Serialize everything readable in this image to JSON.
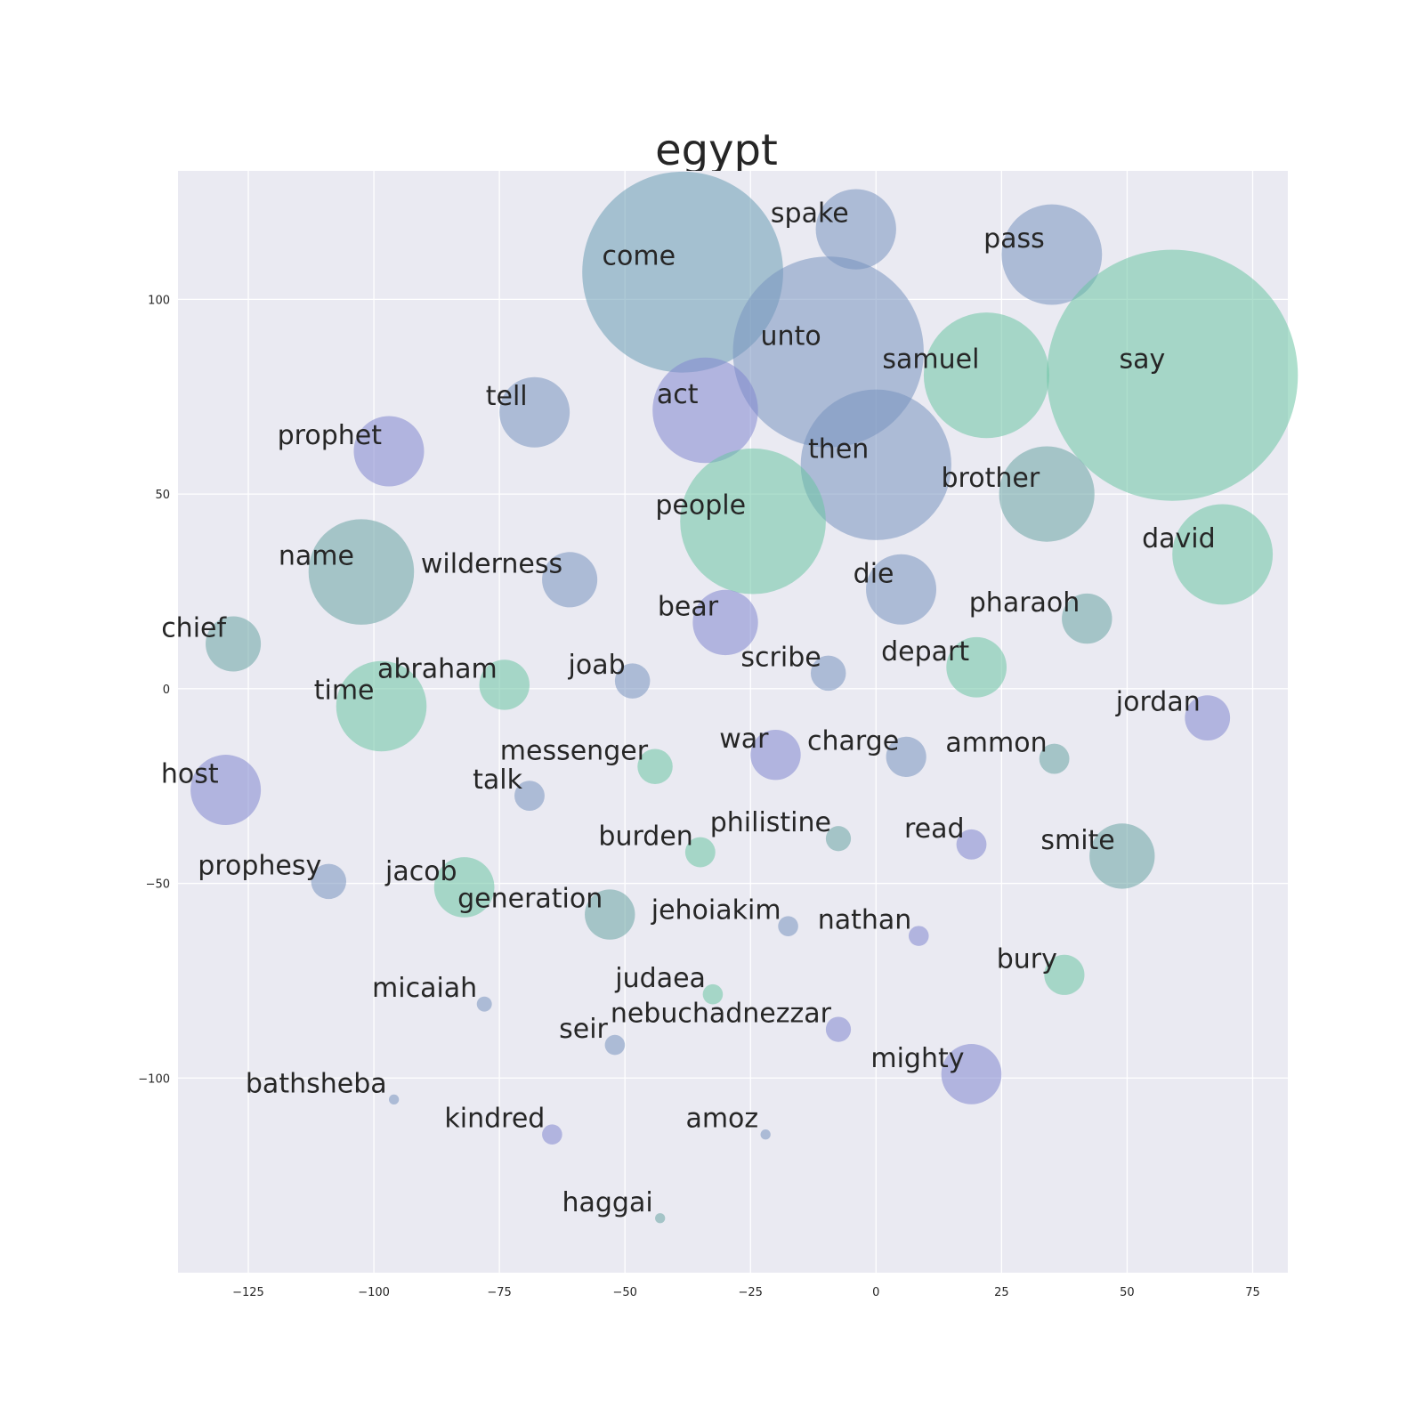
{
  "chart_data": {
    "type": "scatter",
    "title": "egypt",
    "xlabel": "",
    "ylabel": "",
    "xlim": [
      -139,
      82
    ],
    "ylim": [
      -150,
      133
    ],
    "x_ticks": [
      -125,
      -100,
      -75,
      -50,
      -25,
      0,
      25,
      50,
      75
    ],
    "y_ticks": [
      -100,
      -50,
      0,
      50,
      100
    ],
    "x_tick_labels": [
      "−125",
      "−100",
      "−75",
      "−50",
      "−25",
      "0",
      "25",
      "50",
      "75"
    ],
    "y_tick_labels": [
      "−100",
      "−50",
      "0",
      "50",
      "100"
    ],
    "grid": true,
    "legend": "none",
    "colors": {
      "background": "#eaeaf2",
      "grid": "#ffffff",
      "text": "#262626",
      "green": "#6cc4a4",
      "teal": "#6aa4a4",
      "steel": "#6a9cb4",
      "slate": "#7893bf",
      "indigo": "#8186cf"
    },
    "points": [
      {
        "label": "come",
        "x": -38.5,
        "y": 107,
        "size": 40,
        "color": "steel"
      },
      {
        "label": "spake",
        "x": -4,
        "y": 118,
        "size": 16,
        "color": "slate"
      },
      {
        "label": "pass",
        "x": 35,
        "y": 111.5,
        "size": 20,
        "color": "slate"
      },
      {
        "label": "unto",
        "x": -9.5,
        "y": 86.5,
        "size": 38,
        "color": "slate"
      },
      {
        "label": "samuel",
        "x": 22,
        "y": 80.5,
        "size": 25,
        "color": "green"
      },
      {
        "label": "say",
        "x": 59,
        "y": 80.5,
        "size": 50,
        "color": "green"
      },
      {
        "label": "tell",
        "x": -68,
        "y": 71,
        "size": 14,
        "color": "slate"
      },
      {
        "label": "act",
        "x": -34,
        "y": 71.5,
        "size": 21,
        "color": "indigo"
      },
      {
        "label": "prophet",
        "x": -97,
        "y": 61,
        "size": 14,
        "color": "indigo"
      },
      {
        "label": "then",
        "x": 0,
        "y": 57.5,
        "size": 30,
        "color": "slate"
      },
      {
        "label": "brother",
        "x": 34,
        "y": 50,
        "size": 19,
        "color": "teal"
      },
      {
        "label": "people",
        "x": -24.5,
        "y": 43,
        "size": 29,
        "color": "green"
      },
      {
        "label": "david",
        "x": 69,
        "y": 34.5,
        "size": 20,
        "color": "green"
      },
      {
        "label": "name",
        "x": -102.5,
        "y": 30,
        "size": 21,
        "color": "teal"
      },
      {
        "label": "wilderness",
        "x": -61,
        "y": 28,
        "size": 11,
        "color": "slate"
      },
      {
        "label": "die",
        "x": 5,
        "y": 25.5,
        "size": 14,
        "color": "slate"
      },
      {
        "label": "bear",
        "x": -30,
        "y": 17,
        "size": 13,
        "color": "indigo"
      },
      {
        "label": "pharaoh",
        "x": 42,
        "y": 18,
        "size": 10,
        "color": "teal"
      },
      {
        "label": "chief",
        "x": -128,
        "y": 11.5,
        "size": 11,
        "color": "teal"
      },
      {
        "label": "depart",
        "x": 20,
        "y": 5.5,
        "size": 12,
        "color": "green"
      },
      {
        "label": "scribe",
        "x": -9.5,
        "y": 4,
        "size": 7,
        "color": "slate"
      },
      {
        "label": "joab",
        "x": -48.5,
        "y": 2,
        "size": 7,
        "color": "slate"
      },
      {
        "label": "abraham",
        "x": -74,
        "y": 1,
        "size": 10,
        "color": "green"
      },
      {
        "label": "time",
        "x": -98.5,
        "y": -4.5,
        "size": 18,
        "color": "green"
      },
      {
        "label": "jordan",
        "x": 66,
        "y": -7.5,
        "size": 9,
        "color": "indigo"
      },
      {
        "label": "war",
        "x": -20,
        "y": -17,
        "size": 10,
        "color": "indigo"
      },
      {
        "label": "charge",
        "x": 6,
        "y": -17.5,
        "size": 8,
        "color": "slate"
      },
      {
        "label": "ammon",
        "x": 35.5,
        "y": -18,
        "size": 6,
        "color": "teal"
      },
      {
        "label": "messenger",
        "x": -44,
        "y": -20,
        "size": 7,
        "color": "green"
      },
      {
        "label": "host",
        "x": -129.5,
        "y": -26,
        "size": 14,
        "color": "indigo"
      },
      {
        "label": "talk",
        "x": -69,
        "y": -27.5,
        "size": 6,
        "color": "slate"
      },
      {
        "label": "philistine",
        "x": -7.5,
        "y": -38.5,
        "size": 5,
        "color": "teal"
      },
      {
        "label": "read",
        "x": 19,
        "y": -40,
        "size": 6,
        "color": "indigo"
      },
      {
        "label": "burden",
        "x": -35,
        "y": -42,
        "size": 6,
        "color": "green"
      },
      {
        "label": "smite",
        "x": 49,
        "y": -43,
        "size": 13,
        "color": "teal"
      },
      {
        "label": "prophesy",
        "x": -109,
        "y": -49.5,
        "size": 7,
        "color": "slate"
      },
      {
        "label": "jacob",
        "x": -82,
        "y": -51,
        "size": 12,
        "color": "green"
      },
      {
        "label": "generation",
        "x": -53,
        "y": -58,
        "size": 10,
        "color": "teal"
      },
      {
        "label": "jehoiakim",
        "x": -17.5,
        "y": -61,
        "size": 4,
        "color": "slate"
      },
      {
        "label": "nathan",
        "x": 8.5,
        "y": -63.5,
        "size": 4,
        "color": "indigo"
      },
      {
        "label": "bury",
        "x": 37.5,
        "y": -73.5,
        "size": 8,
        "color": "green"
      },
      {
        "label": "judaea",
        "x": -32.5,
        "y": -78.5,
        "size": 4,
        "color": "green"
      },
      {
        "label": "micaiah",
        "x": -78,
        "y": -81,
        "size": 3,
        "color": "slate"
      },
      {
        "label": "nebuchadnezzar",
        "x": -7.5,
        "y": -87.5,
        "size": 5,
        "color": "indigo"
      },
      {
        "label": "seir",
        "x": -52,
        "y": -91.5,
        "size": 4,
        "color": "slate"
      },
      {
        "label": "mighty",
        "x": 19,
        "y": -99,
        "size": 12,
        "color": "indigo"
      },
      {
        "label": "bathsheba",
        "x": -96,
        "y": -105.5,
        "size": 2,
        "color": "slate"
      },
      {
        "label": "kindred",
        "x": -64.5,
        "y": -114.5,
        "size": 4,
        "color": "indigo"
      },
      {
        "label": "amoz",
        "x": -22,
        "y": -114.5,
        "size": 2,
        "color": "slate"
      },
      {
        "label": "haggai",
        "x": -43,
        "y": -136,
        "size": 2,
        "color": "teal"
      }
    ]
  }
}
